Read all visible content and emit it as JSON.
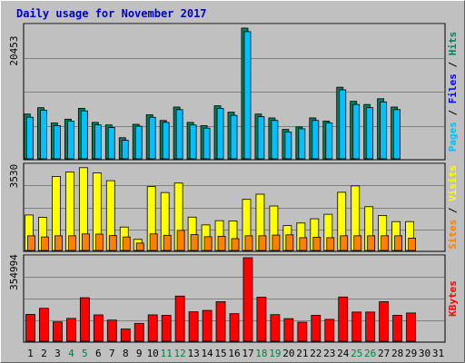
{
  "title": "Daily usage for November 2017",
  "colors": {
    "title": "#0000c0",
    "hits": "#00805c",
    "files": "#0000ff",
    "pages": "#00c0ff",
    "visits": "#ffff00",
    "sites": "#ff8000",
    "kbytes": "#ff0000",
    "weekend_day": "#008040",
    "weekday": "#000000"
  },
  "panels": {
    "top": {
      "max_label": "20453",
      "legend": [
        "Pages",
        "Files",
        "Hits"
      ]
    },
    "middle": {
      "max_label": "3530",
      "legend": [
        "Sites",
        "Visits"
      ]
    },
    "bottom": {
      "max_label": "354994",
      "legend": [
        "KBytes"
      ]
    }
  },
  "days": [
    "1",
    "2",
    "3",
    "4",
    "5",
    "6",
    "7",
    "8",
    "9",
    "10",
    "11",
    "12",
    "13",
    "14",
    "15",
    "16",
    "17",
    "18",
    "19",
    "20",
    "21",
    "22",
    "23",
    "24",
    "25",
    "26",
    "27",
    "28",
    "29",
    "30",
    "31"
  ],
  "weekend_days": [
    "4",
    "5",
    "11",
    "12",
    "18",
    "19",
    "25",
    "26"
  ],
  "chart_data": [
    {
      "type": "bar",
      "title": "Daily usage for November 2017",
      "categories": [
        "1",
        "2",
        "3",
        "4",
        "5",
        "6",
        "7",
        "8",
        "9",
        "10",
        "11",
        "12",
        "13",
        "14",
        "15",
        "16",
        "17",
        "18",
        "19",
        "20",
        "21",
        "22",
        "23",
        "24",
        "25",
        "26",
        "27",
        "28",
        "29",
        "30",
        "31"
      ],
      "ylim": [
        0,
        20453
      ],
      "series": [
        {
          "name": "Hits",
          "values": [
            7000,
            8000,
            5600,
            6200,
            7900,
            5700,
            5300,
            3300,
            5400,
            6900,
            6000,
            8100,
            5700,
            5200,
            8300,
            7300,
            20453,
            7000,
            6400,
            4600,
            5000,
            6400,
            5900,
            11200,
            9000,
            8500,
            9400,
            8100,
            0,
            0,
            0
          ]
        },
        {
          "name": "Files",
          "values": [
            6500,
            7600,
            5200,
            5900,
            7500,
            5300,
            4900,
            2900,
            5100,
            6500,
            5700,
            7700,
            5300,
            4800,
            7900,
            6800,
            19900,
            6600,
            6000,
            4200,
            4700,
            6000,
            5600,
            10800,
            8500,
            8000,
            8900,
            7700,
            0,
            0,
            0
          ]
        },
        {
          "name": "Pages",
          "values": [
            6500,
            7600,
            5200,
            5900,
            7500,
            5300,
            4900,
            2900,
            5100,
            6500,
            5700,
            7700,
            5300,
            4800,
            7900,
            6800,
            19900,
            6600,
            6000,
            4200,
            4700,
            6000,
            5600,
            10800,
            8500,
            8000,
            8900,
            7700,
            0,
            0,
            0
          ]
        }
      ],
      "legend": [
        "Pages",
        "Files",
        "Hits"
      ]
    },
    {
      "type": "bar",
      "categories": [
        "1",
        "2",
        "3",
        "4",
        "5",
        "6",
        "7",
        "8",
        "9",
        "10",
        "11",
        "12",
        "13",
        "14",
        "15",
        "16",
        "17",
        "18",
        "19",
        "20",
        "21",
        "22",
        "23",
        "24",
        "25",
        "26",
        "27",
        "28",
        "29",
        "30",
        "31"
      ],
      "ylim": [
        0,
        3530
      ],
      "series": [
        {
          "name": "Visits",
          "values": [
            1500,
            1400,
            3130,
            3320,
            3500,
            3280,
            2950,
            990,
            470,
            2700,
            2450,
            2850,
            1410,
            1080,
            1260,
            1250,
            2160,
            2380,
            1880,
            1050,
            1160,
            1340,
            1530,
            2460,
            2730,
            1850,
            1480,
            1220,
            1220,
            0,
            0
          ]
        },
        {
          "name": "Sites",
          "values": [
            620,
            570,
            620,
            620,
            700,
            690,
            630,
            570,
            310,
            700,
            640,
            850,
            670,
            580,
            600,
            500,
            620,
            620,
            650,
            660,
            540,
            560,
            540,
            620,
            620,
            620,
            620,
            620,
            520,
            0,
            0
          ]
        }
      ],
      "legend": [
        "Sites",
        "Visits"
      ]
    },
    {
      "type": "bar",
      "categories": [
        "1",
        "2",
        "3",
        "4",
        "5",
        "6",
        "7",
        "8",
        "9",
        "10",
        "11",
        "12",
        "13",
        "14",
        "15",
        "16",
        "17",
        "18",
        "19",
        "20",
        "21",
        "22",
        "23",
        "24",
        "25",
        "26",
        "27",
        "28",
        "29",
        "30",
        "31"
      ],
      "ylim": [
        0,
        354994
      ],
      "series": [
        {
          "name": "KBytes",
          "values": [
            114000,
            140000,
            82000,
            97000,
            185000,
            112000,
            90000,
            52000,
            76000,
            112000,
            110000,
            192000,
            125000,
            131000,
            168000,
            117000,
            354994,
            187000,
            113000,
            96000,
            81000,
            110000,
            93000,
            188000,
            124000,
            124000,
            168000,
            110000,
            120000,
            0,
            0
          ]
        }
      ],
      "legend": [
        "KBytes"
      ]
    }
  ]
}
